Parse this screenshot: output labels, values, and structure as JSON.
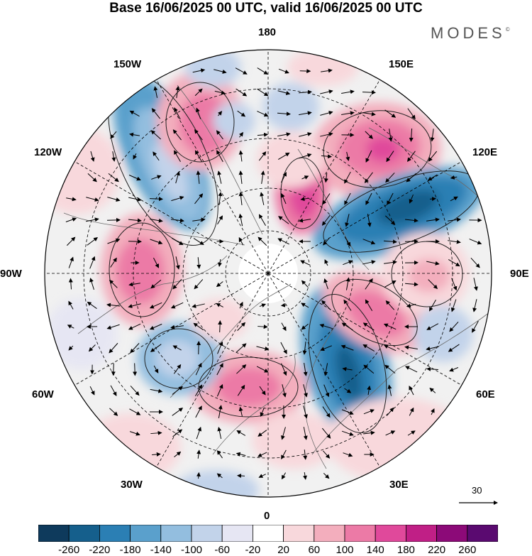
{
  "title": "Base 16/06/2025 00 UTC, valid 16/06/2025 00 UTC",
  "brand": "MODES",
  "brand_mark": "©",
  "longitude_labels": {
    "lon_180": "180",
    "lon_150e": "150E",
    "lon_120e": "120E",
    "lon_90e": "90E",
    "lon_60e": "60E",
    "lon_30e": "30E",
    "lon_0": "0",
    "lon_30w": "30W",
    "lon_60w": "60W",
    "lon_90w": "90W",
    "lon_120w": "120W",
    "lon_150w": "150W"
  },
  "reference_vector": {
    "label": "30"
  },
  "colorbar": {
    "colors": [
      "#0e3a5c",
      "#155f8c",
      "#2b7fb4",
      "#5aa0cc",
      "#93bedf",
      "#c2d3ea",
      "#e6e6f3",
      "#ffffff",
      "#f8d8dc",
      "#f3aebd",
      "#ec7aa6",
      "#e0499b",
      "#c01f86",
      "#8c0a78",
      "#5a0a70"
    ],
    "tick_labels": [
      "-260",
      "-220",
      "-180",
      "-140",
      "-100",
      "-60",
      "-20",
      "20",
      "60",
      "100",
      "140",
      "180",
      "220",
      "260"
    ]
  },
  "map": {
    "projection": "north-polar-stereographic",
    "features": [
      "geopotential-anomaly-shading",
      "wind-vectors",
      "coastlines",
      "graticule"
    ]
  }
}
